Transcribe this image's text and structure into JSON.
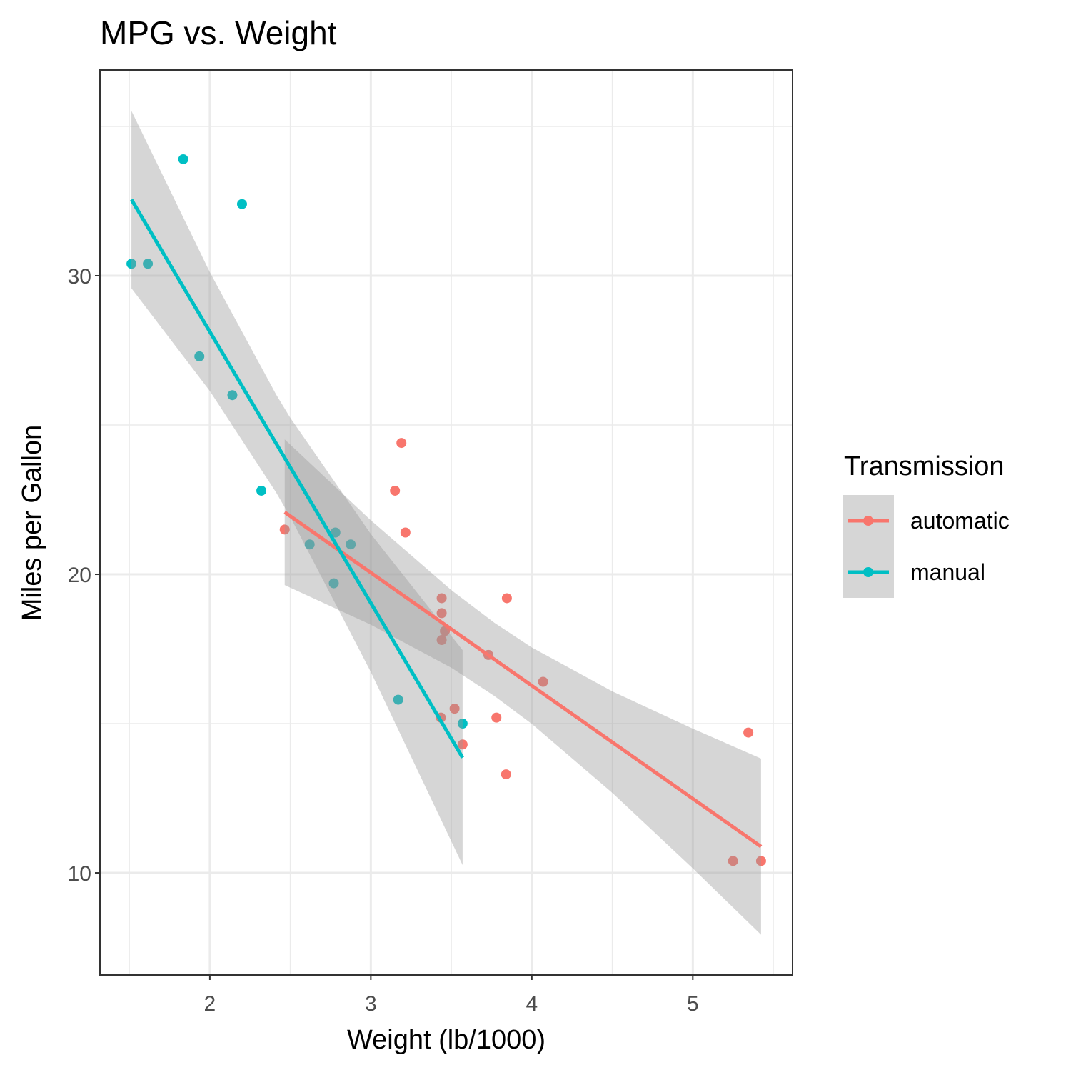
{
  "chart_data": {
    "type": "scatter",
    "title": "MPG vs. Weight",
    "x_label": "Weight (lb/1000)",
    "y_label": "Miles per Gallon",
    "legend_title": "Transmission",
    "legend": "right",
    "xlim": [
      1.3175,
      5.6195
    ],
    "ylim": [
      6.58,
      36.89
    ],
    "xticks": [
      2,
      3,
      4,
      5
    ],
    "yticks": [
      10,
      20,
      30
    ],
    "xminor": [
      1.5,
      2.5,
      3.5,
      4.5,
      5.5
    ],
    "yminor": [
      15,
      25,
      35
    ],
    "grid": true,
    "band_color": "#999999",
    "series": [
      {
        "name": "automatic",
        "color": "#F8766D",
        "x": [
          3.215,
          3.44,
          3.46,
          3.57,
          3.19,
          3.15,
          3.44,
          3.44,
          4.07,
          3.73,
          3.78,
          5.25,
          5.424,
          5.345,
          2.465,
          3.52,
          3.435,
          3.84,
          3.845
        ],
        "values": [
          21.4,
          18.7,
          18.1,
          14.3,
          24.4,
          22.8,
          19.2,
          17.8,
          16.4,
          17.3,
          15.2,
          10.4,
          10.4,
          14.7,
          21.5,
          15.5,
          15.2,
          13.3,
          19.2
        ],
        "fit": {
          "x": [
            2.465,
            5.424
          ],
          "values": [
            22.08,
            10.88
          ]
        },
        "band": {
          "x": [
            2.465,
            3.0,
            3.5,
            3.769,
            4.0,
            4.5,
            5.0,
            5.424
          ],
          "lower": [
            19.64,
            18.31,
            16.87,
            15.92,
            14.99,
            12.68,
            10.15,
            7.93
          ],
          "upper": [
            24.52,
            21.81,
            19.47,
            18.37,
            17.55,
            16.08,
            14.83,
            13.83
          ]
        }
      },
      {
        "name": "manual",
        "color": "#00BFC4",
        "x": [
          2.62,
          2.875,
          2.32,
          2.2,
          1.615,
          1.835,
          1.935,
          2.14,
          1.513,
          3.17,
          2.77,
          3.57,
          2.78
        ],
        "values": [
          21,
          21,
          22.8,
          32.4,
          30.4,
          33.9,
          27.3,
          26,
          30.4,
          15.8,
          19.7,
          15,
          21.4
        ],
        "fit": {
          "x": [
            1.513,
            3.57
          ],
          "values": [
            32.55,
            13.86
          ]
        },
        "band": {
          "x": [
            1.513,
            2.0,
            2.411,
            2.5,
            3.0,
            3.57
          ],
          "lower": [
            29.58,
            26.14,
            22.75,
            21.92,
            16.73,
            10.26
          ],
          "upper": [
            35.52,
            30.12,
            26.03,
            25.24,
            21.35,
            17.46
          ]
        }
      }
    ]
  }
}
